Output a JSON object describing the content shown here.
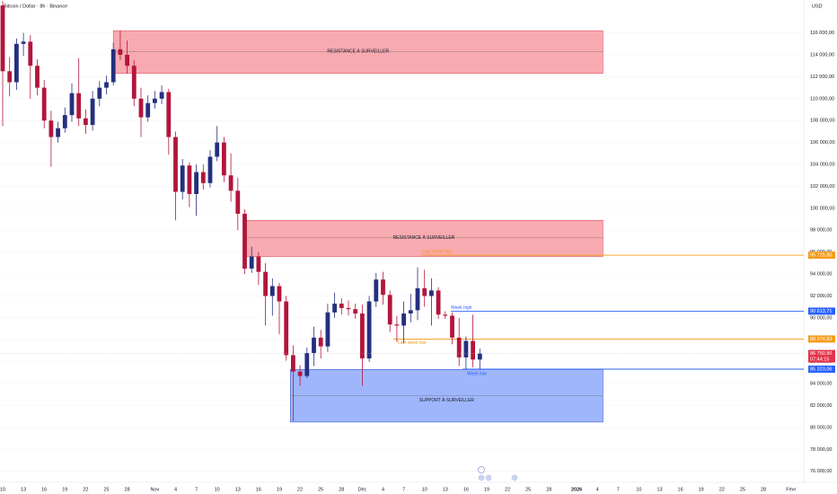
{
  "chart_data": {
    "type": "candlestick",
    "title": "Bitcoin / Dollar · 8h · Binance",
    "currency": "USD",
    "up_color": "#24307f",
    "down_color": "#b3153b",
    "open": [
      118500,
      112500,
      111500,
      115000,
      115200,
      113000,
      111000,
      108000,
      106500,
      107300,
      108500,
      110500,
      108200,
      107600,
      110000,
      111000,
      111500,
      114500,
      114000,
      113000,
      110000,
      108300,
      109600,
      110000,
      110600,
      106500,
      101500,
      103900,
      101300,
      103300,
      102300,
      104700,
      106000,
      103000,
      101600,
      99500,
      94500,
      95600,
      94200,
      92000,
      92900,
      91500,
      86600,
      85100,
      84700,
      86800,
      88200,
      87400,
      90500,
      91300,
      90900,
      90800,
      90400,
      86300,
      91500,
      93500,
      92100,
      89400,
      89300,
      90400,
      90700,
      92700,
      92000,
      92500,
      90300,
      90200,
      88200,
      86400,
      87900,
      86200
    ],
    "high": [
      118900,
      113800,
      115500,
      116000,
      115800,
      113600,
      111700,
      108900,
      107900,
      109200,
      111400,
      113700,
      109000,
      110700,
      111600,
      112100,
      115100,
      116200,
      115300,
      113500,
      111000,
      110300,
      110700,
      111200,
      110900,
      107000,
      104500,
      104200,
      104000,
      104000,
      105300,
      107500,
      106500,
      105000,
      102800,
      99900,
      96500,
      96000,
      95000,
      93600,
      93200,
      92000,
      87500,
      85700,
      87300,
      89200,
      88900,
      91300,
      92300,
      91800,
      91600,
      91300,
      91200,
      92000,
      94100,
      94200,
      92500,
      90200,
      91500,
      92200,
      94600,
      94400,
      93600,
      92800,
      90600,
      90500,
      90000,
      88300,
      90300,
      87200
    ],
    "low": [
      107500,
      110200,
      110800,
      113900,
      110000,
      110300,
      107300,
      103800,
      106000,
      106900,
      107900,
      107500,
      106800,
      107100,
      109300,
      110400,
      111200,
      113500,
      112300,
      109300,
      106500,
      107900,
      109100,
      109500,
      104900,
      98900,
      100800,
      100100,
      99300,
      101700,
      101900,
      104300,
      102400,
      100600,
      98000,
      94000,
      94100,
      93000,
      89300,
      90200,
      88500,
      86100,
      80600,
      83800,
      84500,
      85600,
      86300,
      86900,
      90000,
      90300,
      90200,
      89900,
      83800,
      86000,
      91000,
      91200,
      88700,
      87800,
      87700,
      89600,
      89800,
      91000,
      89300,
      89900,
      89900,
      87600,
      85600,
      85300,
      85500,
      85300
    ],
    "close": [
      112500,
      111500,
      115000,
      115200,
      113000,
      111000,
      108000,
      106500,
      107300,
      108500,
      110500,
      108200,
      107600,
      110000,
      111000,
      111500,
      114500,
      114000,
      113000,
      110000,
      108300,
      109600,
      110000,
      110600,
      106500,
      101500,
      103900,
      101300,
      103300,
      102300,
      104700,
      106000,
      103000,
      101600,
      99500,
      94500,
      95600,
      94200,
      92000,
      92900,
      91500,
      86600,
      85100,
      84700,
      86800,
      88200,
      87400,
      90500,
      91300,
      90900,
      90800,
      90400,
      86300,
      91500,
      93500,
      92100,
      89400,
      89300,
      90400,
      90700,
      92700,
      92000,
      92500,
      90300,
      90200,
      88200,
      86400,
      87900,
      86200,
      86750.9
    ],
    "ylim": [
      75000,
      119000
    ],
    "yticks": [
      {
        "value": 76000,
        "label": "76 000,00"
      },
      {
        "value": 78000,
        "label": "78 000,00"
      },
      {
        "value": 80000,
        "label": "80 000,00"
      },
      {
        "value": 82000,
        "label": "82 000,00"
      },
      {
        "value": 84000,
        "label": "84 000,00"
      },
      {
        "value": 86000,
        "label": "86 000,00"
      },
      {
        "value": 88000,
        "label": "88 000,00"
      },
      {
        "value": 90000,
        "label": "90 000,00"
      },
      {
        "value": 92000,
        "label": "92 000,00"
      },
      {
        "value": 94000,
        "label": "94 000,00"
      },
      {
        "value": 96000,
        "label": "96 000,00"
      },
      {
        "value": 98000,
        "label": "98 000,00"
      },
      {
        "value": 100000,
        "label": "100 000,00"
      },
      {
        "value": 102000,
        "label": "102 000,00"
      },
      {
        "value": 104000,
        "label": "104 000,00"
      },
      {
        "value": 106000,
        "label": "106 000,00"
      },
      {
        "value": 108000,
        "label": "108 000,00"
      },
      {
        "value": 110000,
        "label": "110 000,00"
      },
      {
        "value": 112000,
        "label": "112 000,00"
      },
      {
        "value": 114000,
        "label": "114 000,00"
      },
      {
        "value": 116000,
        "label": "116 000,00"
      }
    ],
    "xticks": [
      "10",
      "13",
      "16",
      "19",
      "22",
      "25",
      "28",
      "Nov",
      "4",
      "7",
      "10",
      "13",
      "16",
      "19",
      "22",
      "25",
      "28",
      "Déc",
      "4",
      "7",
      "10",
      "13",
      "16",
      "19",
      "22",
      "25",
      "28",
      "2026",
      "4",
      "7",
      "10",
      "13",
      "16",
      "19",
      "22",
      "25",
      "28",
      "Févr"
    ],
    "zones": [
      {
        "label": "RESISTANCE À SURVEILLER",
        "top": 116200,
        "bottom": 112300,
        "middle": 114300,
        "color": "#f7a1a9",
        "border": "#e05561"
      },
      {
        "label": "RESISTANCE À SURVEILLER",
        "top": 98900,
        "bottom": 95600,
        "middle": 97300,
        "color": "#f7a1a9",
        "border": "#e05561"
      },
      {
        "label": "SUPPORT À SURVEILLER",
        "top": 85300,
        "bottom": 80500,
        "middle": 82900,
        "color": "#95aefc",
        "border": "#3a5bd9"
      }
    ],
    "levels": [
      {
        "name": "Last week high",
        "value": 95725.8,
        "label": "95 725,80",
        "color": "#f59c1a"
      },
      {
        "name": "Week high",
        "value": 90613.71,
        "label": "90 613,71",
        "color": "#2962ff"
      },
      {
        "name": "Last week low",
        "value": 88074.83,
        "label": "88 074,83",
        "color": "#f59c1a"
      },
      {
        "name": "Week low",
        "value": 85323.06,
        "label": "85 323,06",
        "color": "#2962ff"
      }
    ],
    "last_price": {
      "value": 86750.9,
      "label": "86 750,90",
      "countdown": "07:44:15",
      "color": "#e5344a"
    }
  }
}
